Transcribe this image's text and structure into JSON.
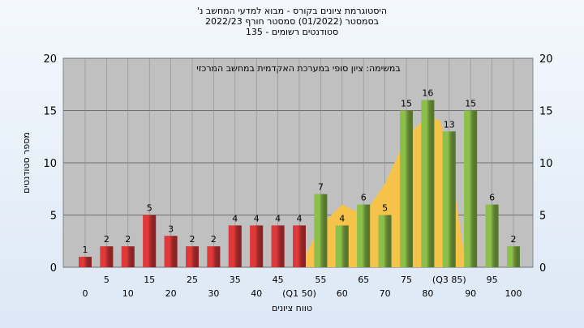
{
  "chart_data": {
    "type": "bar",
    "title": "היסטוגרמת ציונים בקורס - מבוא למדעי המחשב נ'",
    "subtitle": "בסמסטר (01/2022) סמסטר חורף 2022/23",
    "subtitle2": "סטודנטים רשומים - 135",
    "annotation": "במשימה: ציון סופי במערכת האקדמית במחשב המרכזי",
    "y_label": "מספר סטודנטים",
    "x_label": "טווח ציונים",
    "categories": [
      "0",
      "5",
      "10",
      "15",
      "20",
      "25",
      "30",
      "35",
      "40",
      "45",
      "(Q1 50)",
      "55",
      "60",
      "65",
      "70",
      "75",
      "80",
      "(Q3 85)",
      "90",
      "95",
      "100"
    ],
    "values": [
      1,
      2,
      2,
      5,
      3,
      2,
      2,
      4,
      4,
      4,
      4,
      7,
      4,
      6,
      5,
      15,
      16,
      13,
      15,
      6,
      2
    ],
    "colors": [
      "#e0393a",
      "#e0393a",
      "#e0393a",
      "#e0393a",
      "#e0393a",
      "#e0393a",
      "#e0393a",
      "#e0393a",
      "#e0393a",
      "#e0393a",
      "#e0393a",
      "#8cc04a",
      "#8cc04a",
      "#8cc04a",
      "#8cc04a",
      "#8cc04a",
      "#8cc04a",
      "#8cc04a",
      "#8cc04a",
      "#8cc04a",
      "#8cc04a"
    ],
    "curve": {
      "color": "#f5c24a",
      "x": [
        50,
        55,
        60,
        65,
        70,
        75,
        80,
        83,
        86,
        89
      ],
      "values": [
        0,
        4,
        6,
        5,
        8,
        12.5,
        14.5,
        14,
        8,
        0
      ]
    },
    "ylim": [
      0,
      20
    ],
    "yticks": [
      0,
      5,
      10,
      15,
      20
    ],
    "grid": true
  }
}
